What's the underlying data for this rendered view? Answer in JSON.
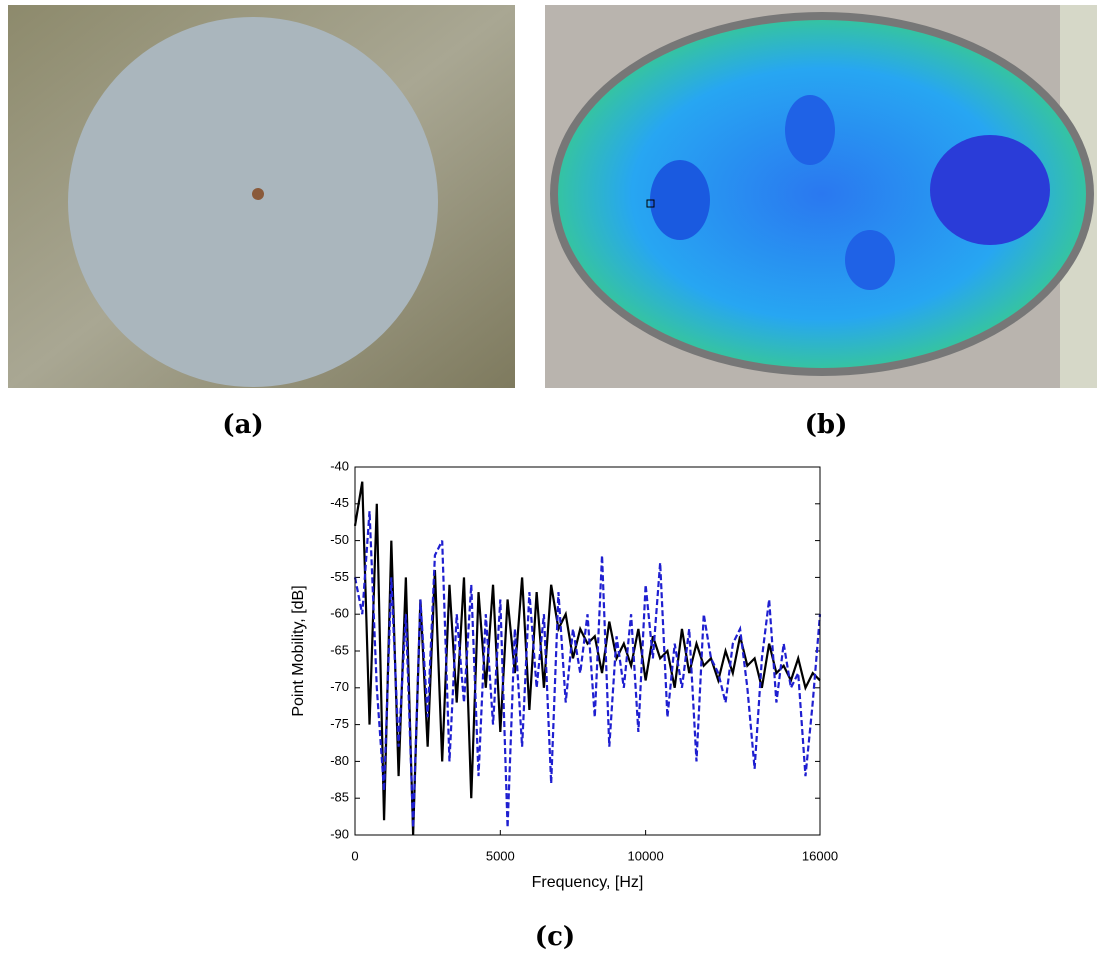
{
  "captions": [
    "(a)",
    "(b)",
    "(c)"
  ],
  "chart_data": {
    "type": "line",
    "xlabel": "Frequency, [Hz]",
    "ylabel": "Point Mobility, [dB]",
    "x": [
      0,
      250,
      500,
      750,
      1000,
      1250,
      1500,
      1750,
      2000,
      2250,
      2500,
      2750,
      3000,
      3250,
      3500,
      3750,
      4000,
      4250,
      4500,
      4750,
      5000,
      5250,
      5500,
      5750,
      6000,
      6250,
      6500,
      6750,
      7000,
      7250,
      7500,
      7750,
      8000,
      8250,
      8500,
      8750,
      9000,
      9250,
      9500,
      9750,
      10000,
      10250,
      10500,
      10750,
      11000,
      11250,
      11500,
      11750,
      12000,
      12250,
      12500,
      12750,
      13000,
      13250,
      13500,
      13750,
      14000,
      14250,
      14500,
      14750,
      15000,
      15250,
      15500,
      15750,
      16000
    ],
    "series": [
      {
        "color": "#000000",
        "dash": false,
        "values": [
          -48,
          -42,
          -75,
          -45,
          -88,
          -50,
          -82,
          -55,
          -90,
          -58,
          -78,
          -54,
          -80,
          -56,
          -72,
          -55,
          -85,
          -57,
          -70,
          -56,
          -76,
          -58,
          -68,
          -55,
          -73,
          -57,
          -70,
          -56,
          -62,
          -60,
          -66,
          -62,
          -64,
          -63,
          -68,
          -61,
          -66,
          -64,
          -67,
          -62,
          -69,
          -63,
          -66,
          -65,
          -70,
          -62,
          -68,
          -64,
          -67,
          -66,
          -69,
          -65,
          -68,
          -63,
          -67,
          -66,
          -70,
          -64,
          -68,
          -67,
          -69,
          -66,
          -70,
          -68,
          -69
        ]
      },
      {
        "color": "#1f1fd0",
        "dash": true,
        "values": [
          -55,
          -60,
          -46,
          -70,
          -84,
          -55,
          -78,
          -60,
          -89,
          -58,
          -74,
          -52,
          -50,
          -80,
          -60,
          -72,
          -56,
          -82,
          -60,
          -75,
          -58,
          -89,
          -62,
          -78,
          -57,
          -70,
          -60,
          -83,
          -57,
          -72,
          -62,
          -68,
          -60,
          -74,
          -52,
          -78,
          -63,
          -70,
          -60,
          -76,
          -56,
          -66,
          -53,
          -74,
          -64,
          -70,
          -62,
          -80,
          -60,
          -66,
          -68,
          -72,
          -64,
          -62,
          -70,
          -81,
          -66,
          -58,
          -72,
          -64,
          -70,
          -68,
          -82,
          -72,
          -60
        ]
      }
    ],
    "xlim": [
      0,
      16000
    ],
    "xticks": [
      0,
      5000,
      10000,
      16000
    ],
    "ylim": [
      -90,
      -40
    ],
    "yticks": [
      -40,
      -45,
      -50,
      -55,
      -60,
      -65,
      -70,
      -75,
      -80,
      -85,
      -90
    ]
  }
}
